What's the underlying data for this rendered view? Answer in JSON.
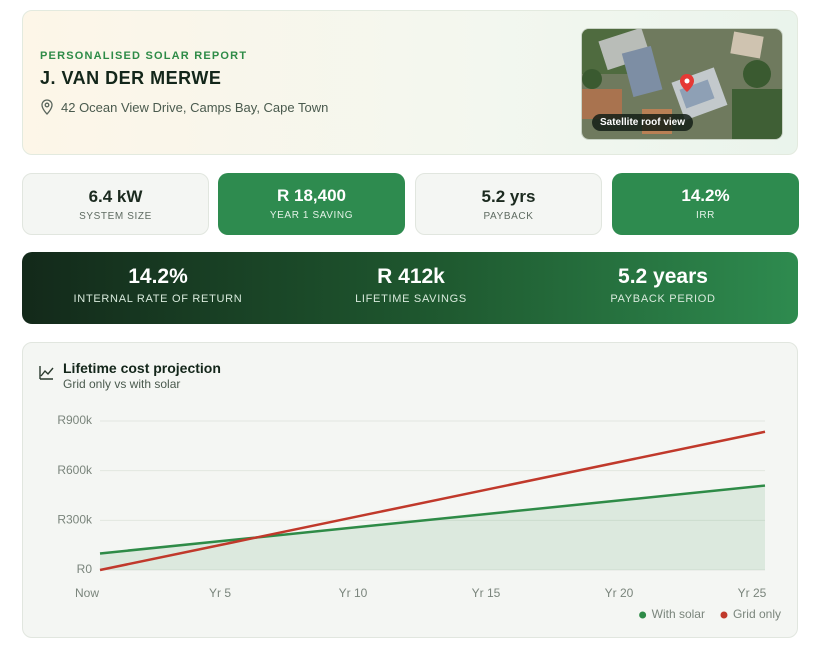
{
  "header": {
    "eyebrow": "PERSONALISED SOLAR REPORT",
    "name": "J. VAN DER MERWE",
    "address": "42 Ocean View Drive, Camps Bay, Cape Town",
    "image_label": "Satellite roof view"
  },
  "stats": [
    {
      "value": "6.4 kW",
      "label": "SYSTEM SIZE"
    },
    {
      "value": "R 18,400",
      "label": "YEAR 1 SAVING"
    },
    {
      "value": "5.2 yrs",
      "label": "PAYBACK"
    },
    {
      "value": "14.2%",
      "label": "IRR"
    }
  ],
  "highlights": [
    {
      "value": "14.2%",
      "label": "INTERNAL RATE OF RETURN"
    },
    {
      "value": "R 412k",
      "label": "LIFETIME SAVINGS"
    },
    {
      "value": "5.2 years",
      "label": "PAYBACK PERIOD"
    }
  ],
  "chart_data": {
    "type": "line",
    "title": "Lifetime cost projection",
    "subtitle": "Grid only vs with solar",
    "categories": [
      "Now",
      "Yr 5",
      "Yr 10",
      "Yr 15",
      "Yr 20",
      "Yr 25"
    ],
    "series": [
      {
        "name": "With solar",
        "color": "#2e8b47",
        "values": [
          100000,
          182000,
          264000,
          346000,
          428000,
          510000
        ]
      },
      {
        "name": "Grid only",
        "color": "#c0392b",
        "values": [
          0,
          167000,
          334000,
          501000,
          668000,
          835000
        ]
      }
    ],
    "ylim": [
      0,
      900000
    ],
    "yticks": [
      {
        "value": 0,
        "label": "R0"
      },
      {
        "value": 300000,
        "label": "R300k"
      },
      {
        "value": 600000,
        "label": "R600k"
      },
      {
        "value": 900000,
        "label": "R900k"
      }
    ],
    "grid": true,
    "legend": "bottom-right",
    "fill_first_series": true
  }
}
